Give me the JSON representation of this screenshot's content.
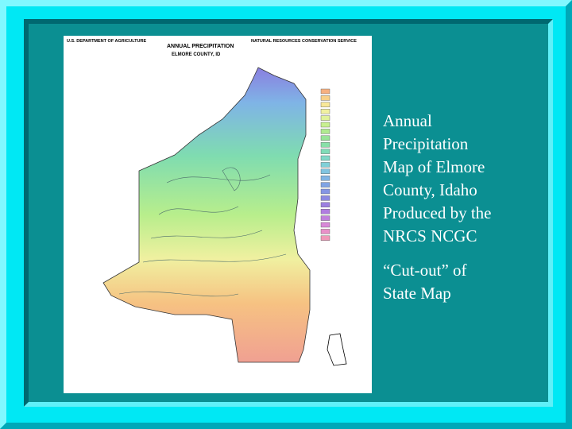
{
  "slide": {
    "map": {
      "agency": "U.S. DEPARTMENT OF AGRICULTURE",
      "title": "ANNUAL PRECIPITATION",
      "subtitle": "ELMORE COUNTY, ID",
      "service": "NATURAL RESOURCES CONSERVATION SERVICE"
    },
    "caption": {
      "lines": [
        "Annual",
        "Precipitation",
        "Map of Elmore",
        "County, Idaho",
        "Produced by the",
        "NRCS NCGC"
      ]
    },
    "note": {
      "lines": [
        "“Cut-out” of",
        "State Map"
      ]
    }
  }
}
